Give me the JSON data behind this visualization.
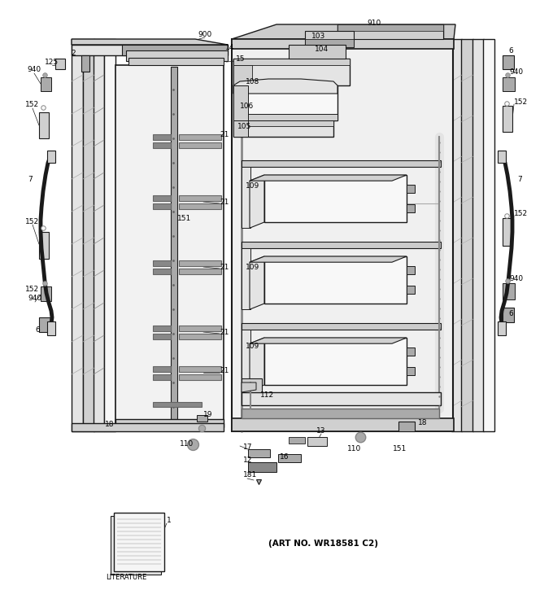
{
  "bg": "#ffffff",
  "lc": "#1a1a1a",
  "figsize": [
    6.8,
    7.25
  ],
  "dpi": 100,
  "art_no": "(ART NO. WR18581 C2)"
}
